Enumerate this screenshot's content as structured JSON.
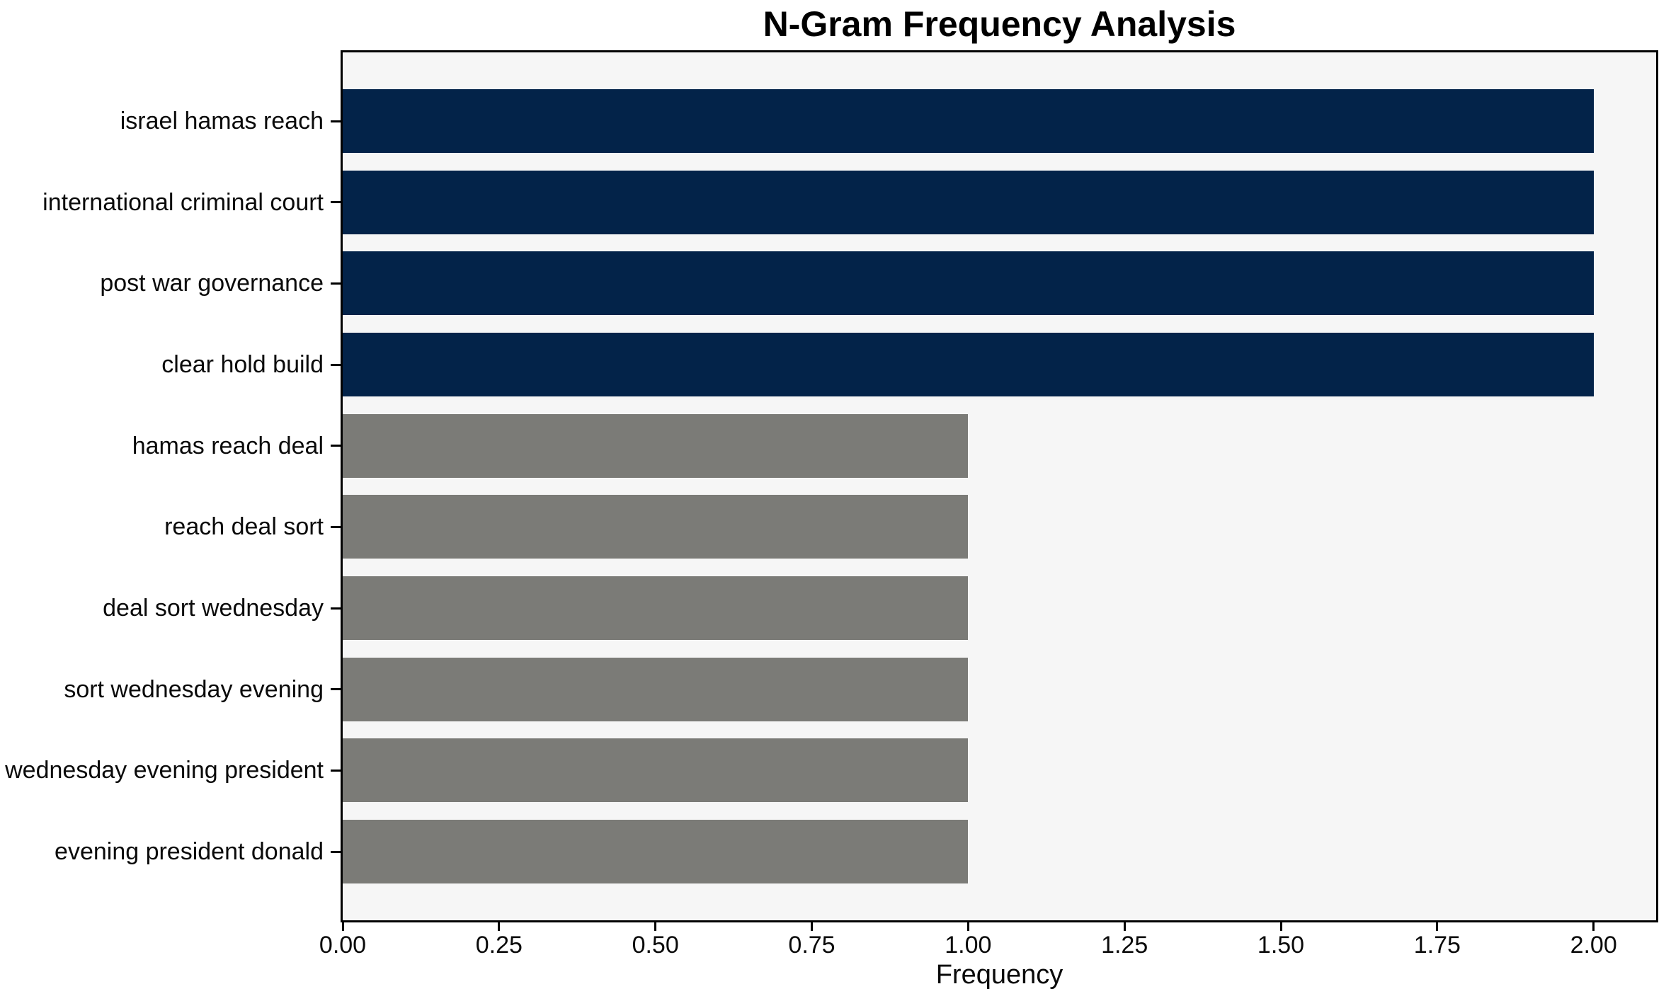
{
  "chart_data": {
    "type": "bar",
    "orientation": "horizontal",
    "title": "N-Gram Frequency Analysis",
    "xlabel": "Frequency",
    "ylabel": "",
    "categories": [
      "israel hamas reach",
      "international criminal court",
      "post war governance",
      "clear hold build",
      "hamas reach deal",
      "reach deal sort",
      "deal sort wednesday",
      "sort wednesday evening",
      "wednesday evening president",
      "evening president donald"
    ],
    "values": [
      2,
      2,
      2,
      2,
      1,
      1,
      1,
      1,
      1,
      1
    ],
    "bar_colors": [
      "#032349",
      "#032349",
      "#032349",
      "#032349",
      "#7b7b77",
      "#7b7b77",
      "#7b7b77",
      "#7b7b77",
      "#7b7b77",
      "#7b7b77"
    ],
    "xlim": [
      0,
      2.1
    ],
    "xticks": [
      0.0,
      0.25,
      0.5,
      0.75,
      1.0,
      1.25,
      1.5,
      1.75,
      2.0
    ],
    "xtick_labels": [
      "0.00",
      "0.25",
      "0.50",
      "0.75",
      "1.00",
      "1.25",
      "1.50",
      "1.75",
      "2.00"
    ],
    "grid": false,
    "legend": false,
    "colors": {
      "high_frequency_bar": "#032349",
      "low_frequency_bar": "#7b7b77",
      "plot_background": "#f6f6f6",
      "figure_background": "#ffffff",
      "axis": "#000000"
    }
  }
}
